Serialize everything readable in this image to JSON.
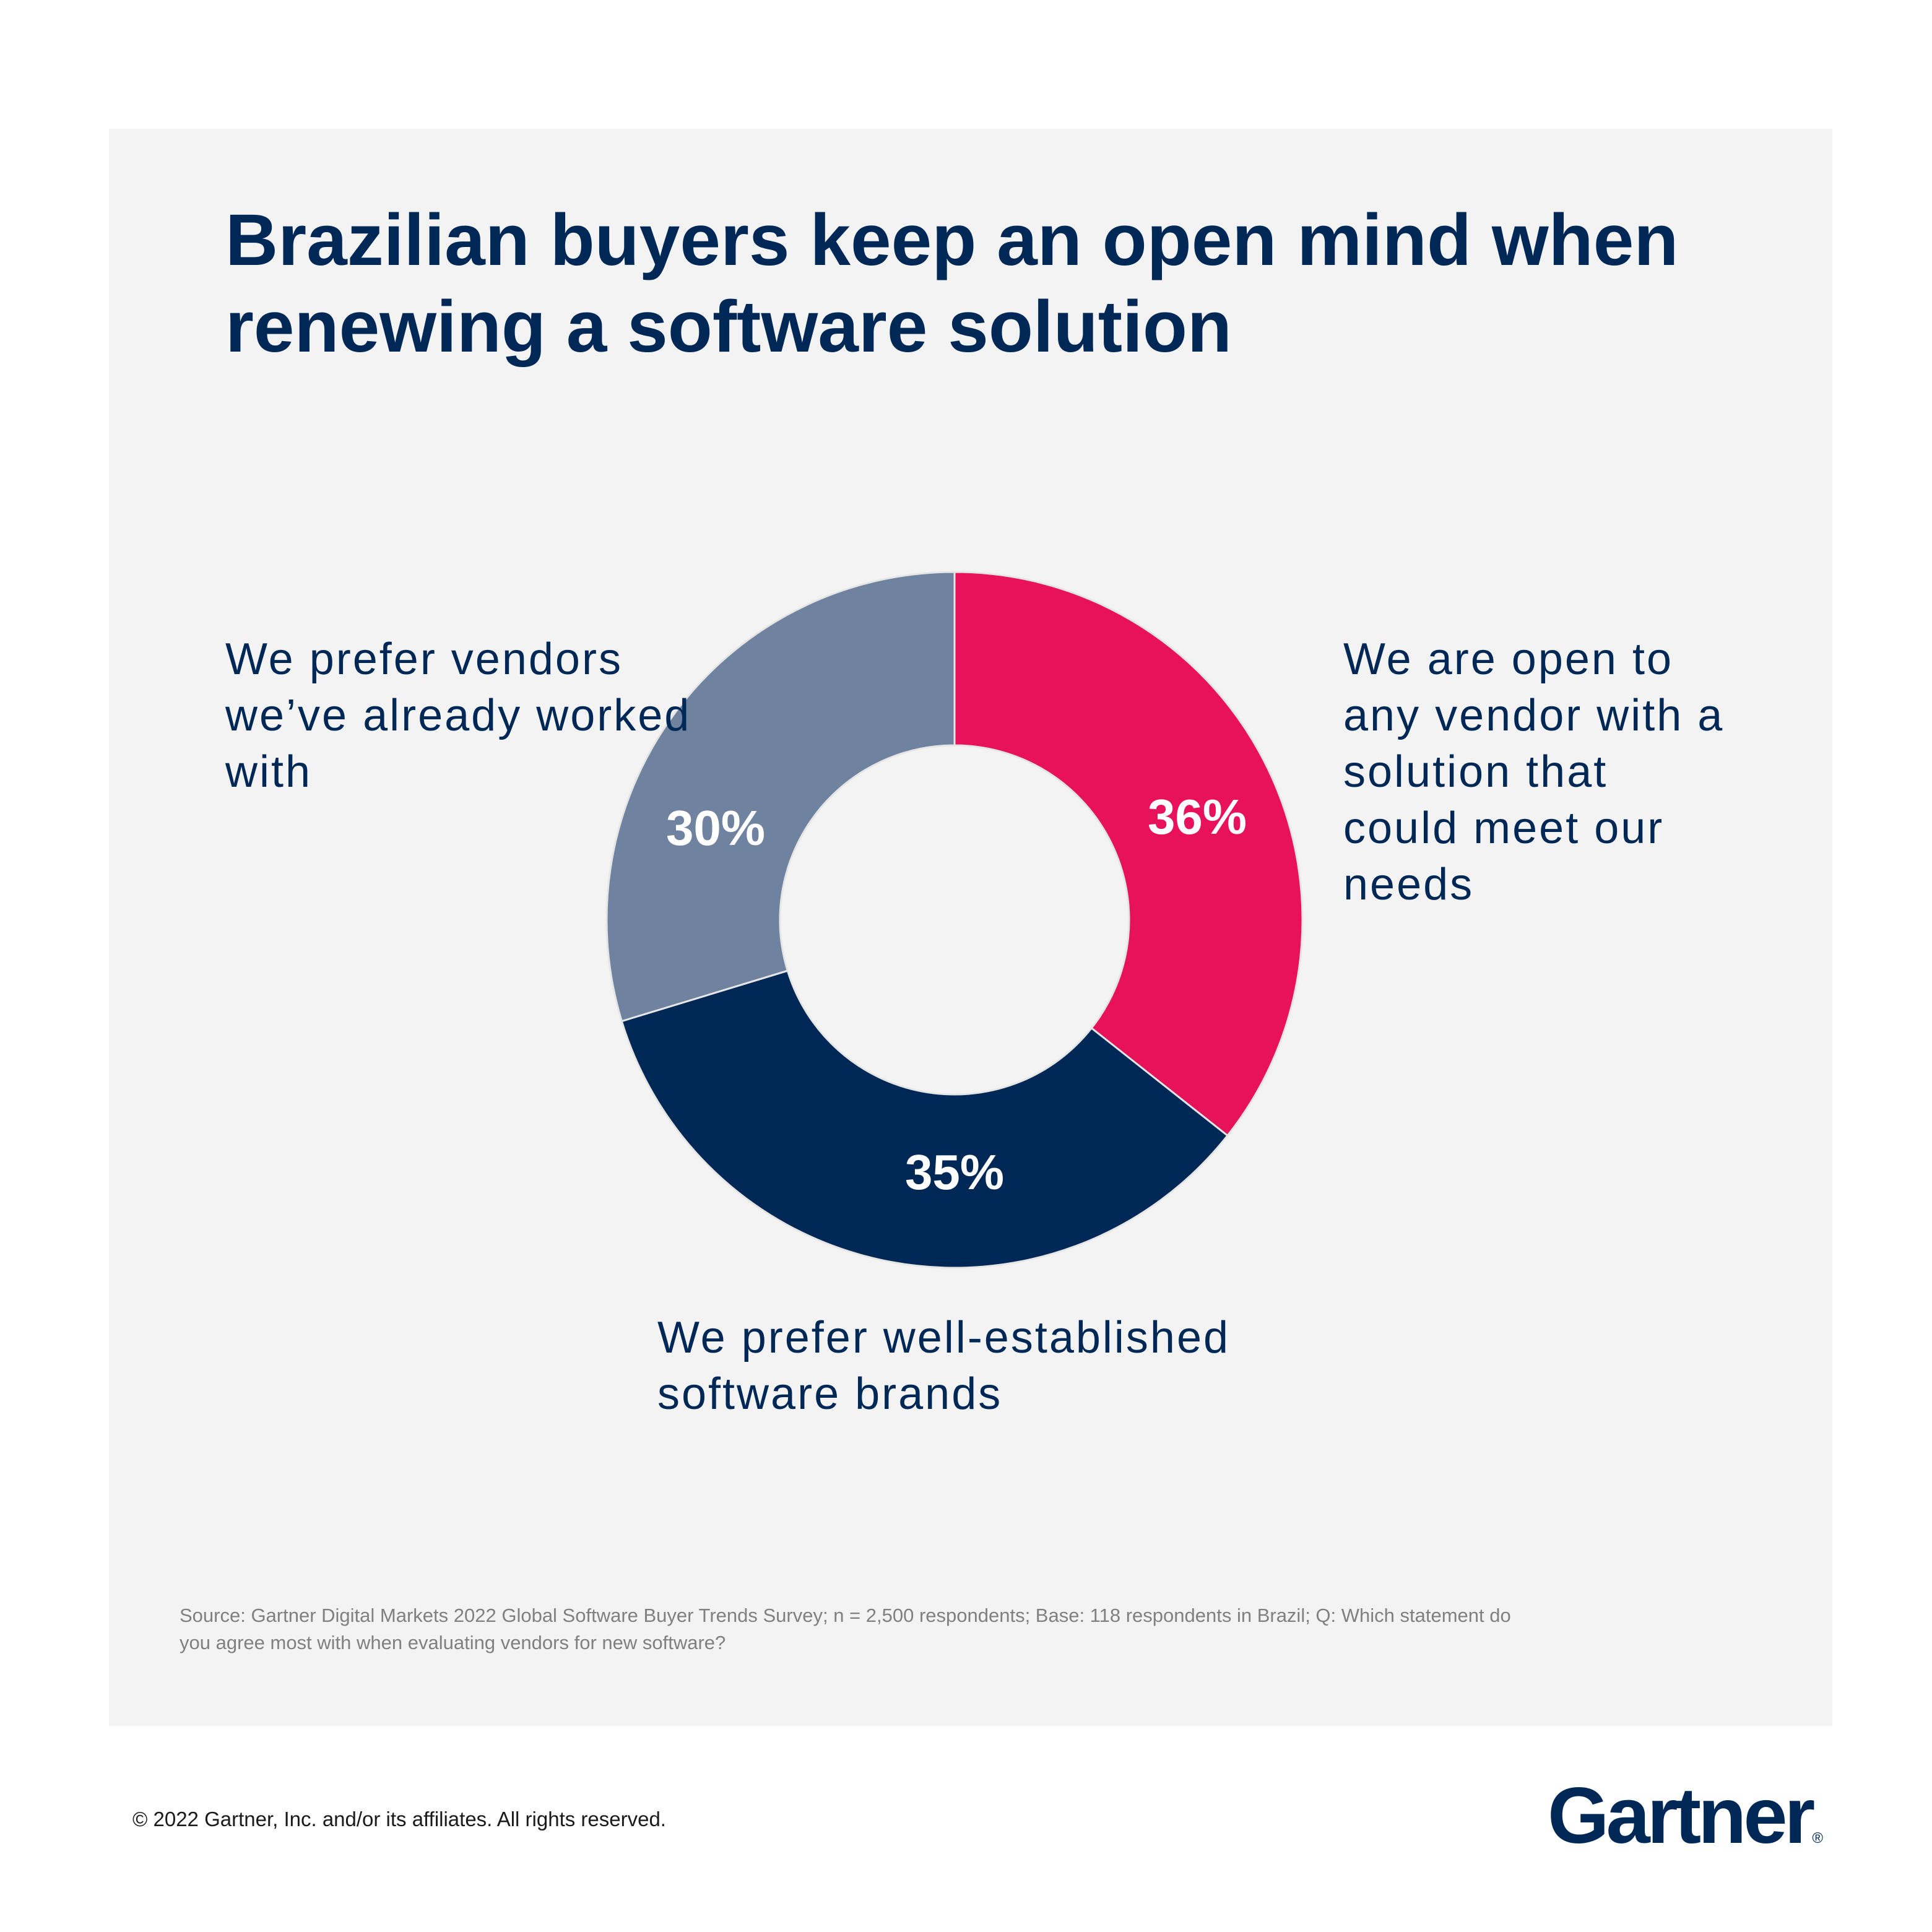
{
  "chart_data": {
    "type": "pie",
    "donut": true,
    "title": "Brazilian buyers keep an open mind when renewing a software solution",
    "categories": [
      "We are open to any vendor with a solution that could meet our needs",
      "We prefer well-established software brands",
      "We prefer vendors we’ve already worked with"
    ],
    "values": [
      36,
      35,
      30
    ],
    "value_labels": [
      "36%",
      "35%",
      "30%"
    ],
    "colors": [
      "#e8125a",
      "#002856",
      "#6f82a0"
    ],
    "source": "Source: Gartner Digital Markets 2022 Global Software Buyer Trends Survey; n = 2,500 respondents; Base: 118 respondents in Brazil; Q: Which statement do you agree most with when evaluating vendors for new software?"
  },
  "footer": {
    "copyright": "© 2022 Gartner, Inc. and/or its affiliates. All rights reserved.",
    "logo": "Gartner",
    "logo_mark": "®"
  }
}
